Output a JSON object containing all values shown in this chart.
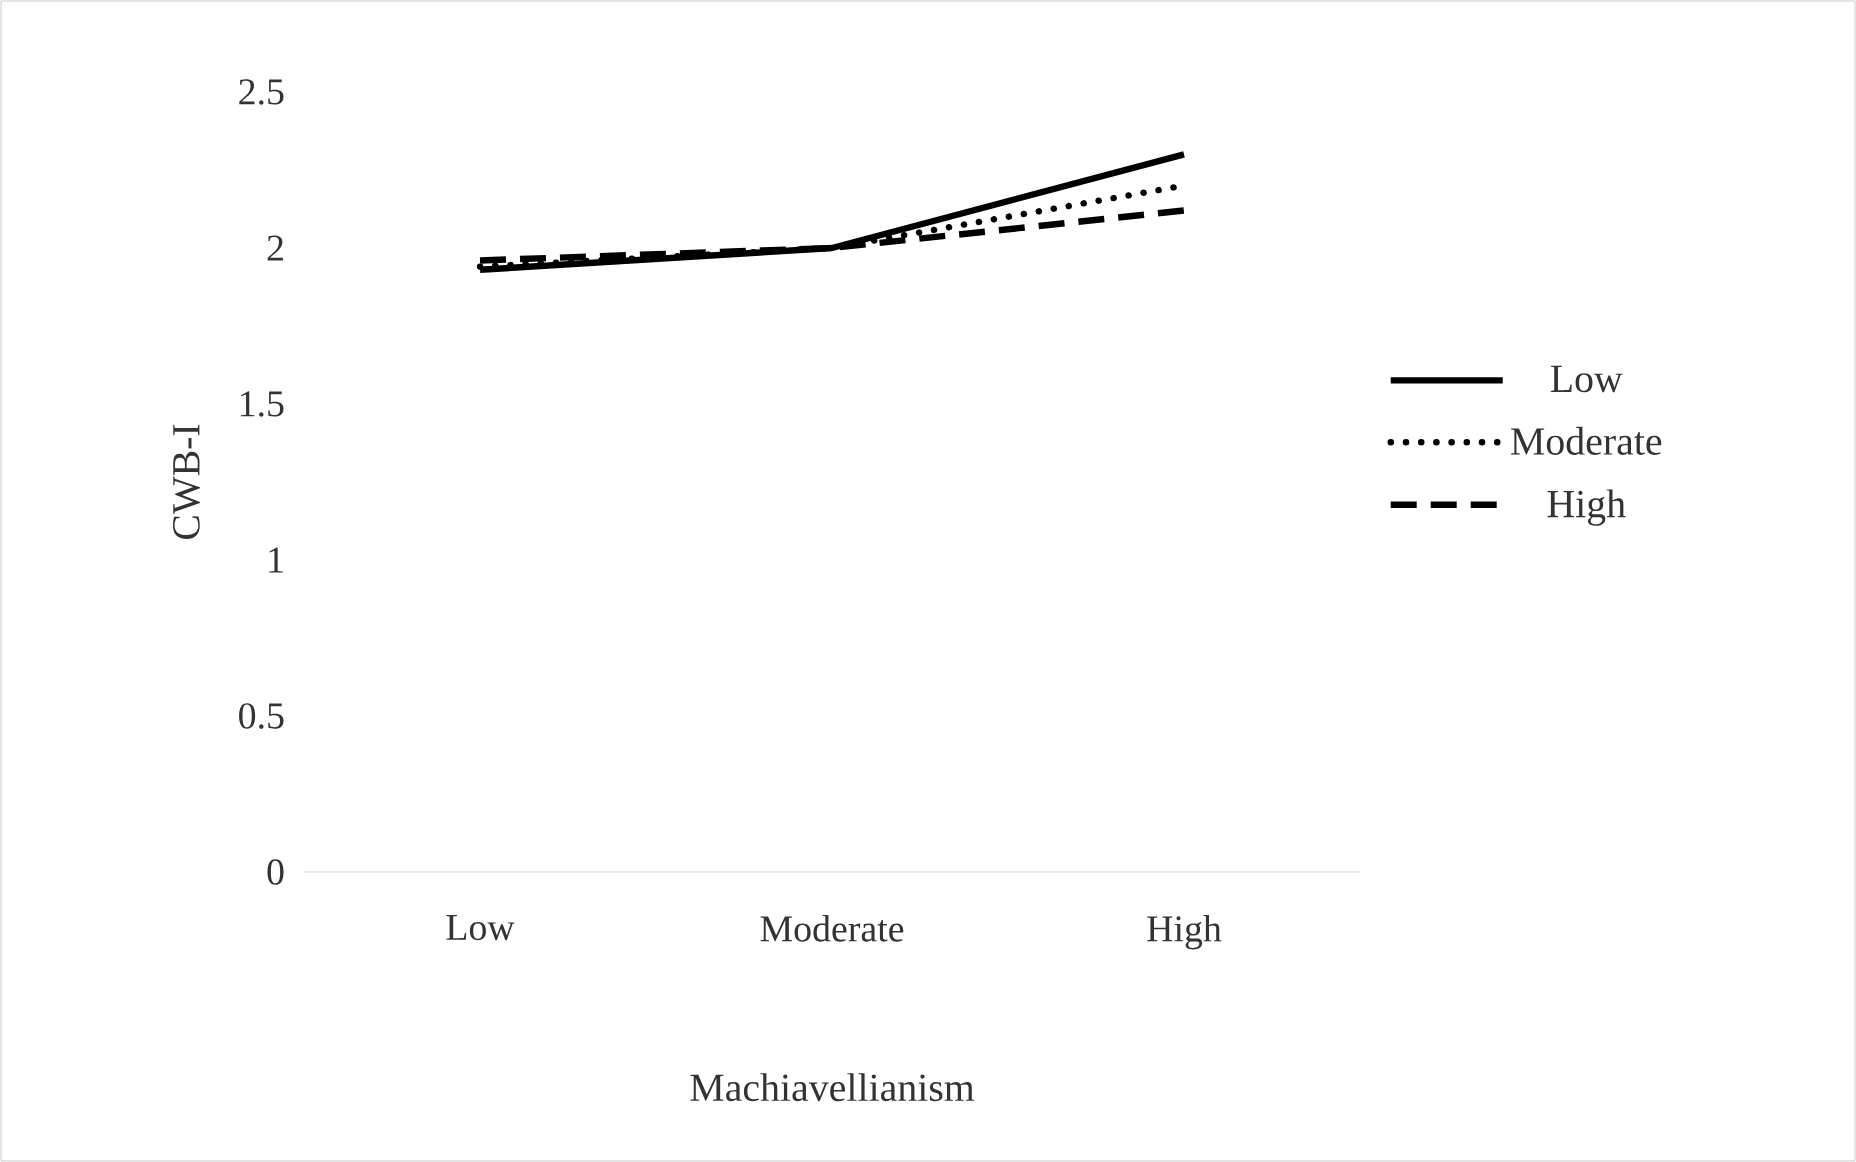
{
  "chart_data": {
    "type": "line",
    "xlabel": "Machiavellianism",
    "ylabel": "CWB-I",
    "categories": [
      "Low",
      "Moderate",
      "High"
    ],
    "series": [
      {
        "name": "Low",
        "color": "#000000",
        "line_style": "solid",
        "values": [
          1.93,
          2.0,
          2.3
        ]
      },
      {
        "name": "Moderate",
        "color": "#000000",
        "line_style": "dotted",
        "values": [
          1.94,
          2.0,
          2.2
        ]
      },
      {
        "name": "High",
        "color": "#000000",
        "line_style": "dashed",
        "values": [
          1.96,
          2.0,
          2.12
        ]
      }
    ],
    "ylim": [
      0,
      2.5
    ],
    "yticks": [
      0,
      0.5,
      1,
      1.5,
      2,
      2.5
    ],
    "grid": false,
    "legend": "right",
    "marker": "none"
  }
}
